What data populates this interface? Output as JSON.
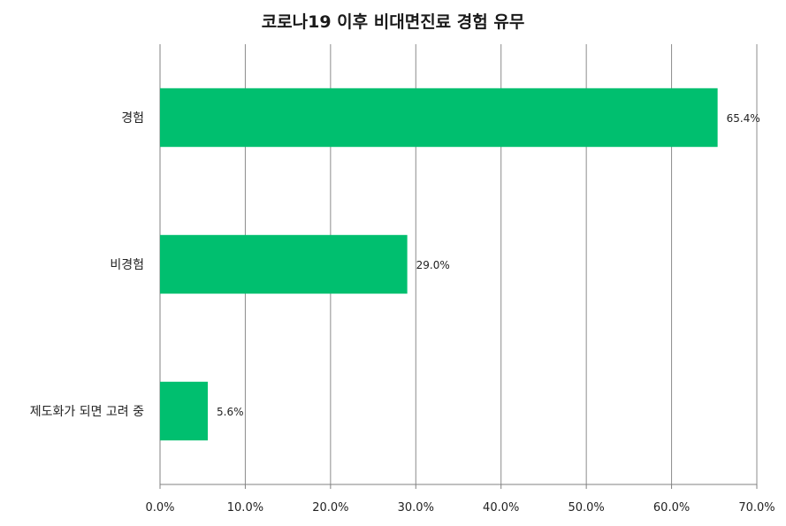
{
  "chart_data": {
    "type": "bar",
    "orientation": "horizontal",
    "title": "코로나19 이후 비대면진료 경험 유무",
    "xlabel": "",
    "ylabel": "",
    "categories": [
      "경험",
      "비경험",
      "제도화가 되면 고려 중"
    ],
    "values": [
      65.4,
      29.0,
      5.6
    ],
    "value_labels": [
      "65.4%",
      "29.0%",
      "5.6%"
    ],
    "xlim": [
      0,
      70
    ],
    "x_ticks": [
      "0.0%",
      "10.0%",
      "20.0%",
      "30.0%",
      "40.0%",
      "50.0%",
      "60.0%",
      "70.0%"
    ],
    "grid": "vertical",
    "legend": "none",
    "bar_color": "#00BF6F"
  }
}
